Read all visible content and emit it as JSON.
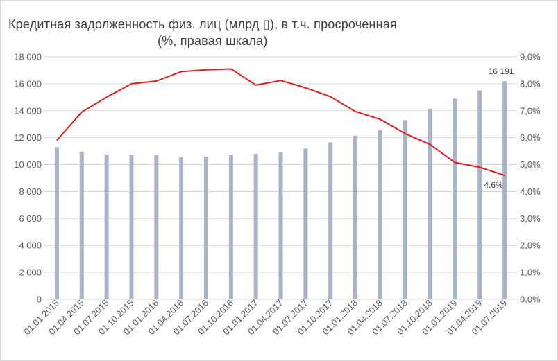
{
  "chart_data": {
    "type": "bar+line",
    "title_line1": "Кредитная задолженность физ. лиц (млрд ▯), в т.ч. просроченная",
    "title_line2": "(%, правая шкала)",
    "categories": [
      "01.01.2015",
      "01.04.2015",
      "01.07.2015",
      "01.10.2015",
      "01.01.2016",
      "01.04.2016",
      "01.07.2016",
      "01.10.2016",
      "01.01.2017",
      "01.04.2017",
      "01.07.2017",
      "01.10.2017",
      "01.01.2018",
      "01.04.2018",
      "01.07.2018",
      "01.10.2018",
      "01.01.2019",
      "01.04.2019",
      "01.07.2019"
    ],
    "series": [
      {
        "type": "bar",
        "axis": "left",
        "color": "#aab4c8",
        "values": [
          11300,
          10950,
          10750,
          10750,
          10700,
          10550,
          10600,
          10750,
          10800,
          10900,
          11200,
          11650,
          12150,
          12550,
          13300,
          14150,
          14900,
          15500,
          16191
        ]
      },
      {
        "type": "line",
        "axis": "right",
        "color": "#e31a1c",
        "values": [
          5.9,
          6.95,
          7.5,
          8.0,
          8.1,
          8.45,
          8.52,
          8.55,
          7.95,
          8.12,
          7.85,
          7.52,
          6.97,
          6.68,
          6.15,
          5.75,
          5.08,
          4.9,
          4.6
        ]
      }
    ],
    "y_left": {
      "min": 0,
      "max": 18000,
      "step": 2000,
      "tick_labels": [
        "0",
        "2 000",
        "4 000",
        "6 000",
        "8 000",
        "10 000",
        "12 000",
        "14 000",
        "16 000",
        "18 000"
      ]
    },
    "y_right": {
      "min": 0,
      "max": 9,
      "step": 1,
      "tick_labels": [
        "0,0%",
        "1,0%",
        "2,0%",
        "3,0%",
        "4,0%",
        "5,0%",
        "6,0%",
        "7,0%",
        "8,0%",
        "9,0%"
      ]
    },
    "grid": true,
    "data_labels": [
      {
        "series": 0,
        "index": 18,
        "text": "16 191"
      },
      {
        "series": 1,
        "index": 18,
        "text": "4,6%"
      }
    ]
  }
}
